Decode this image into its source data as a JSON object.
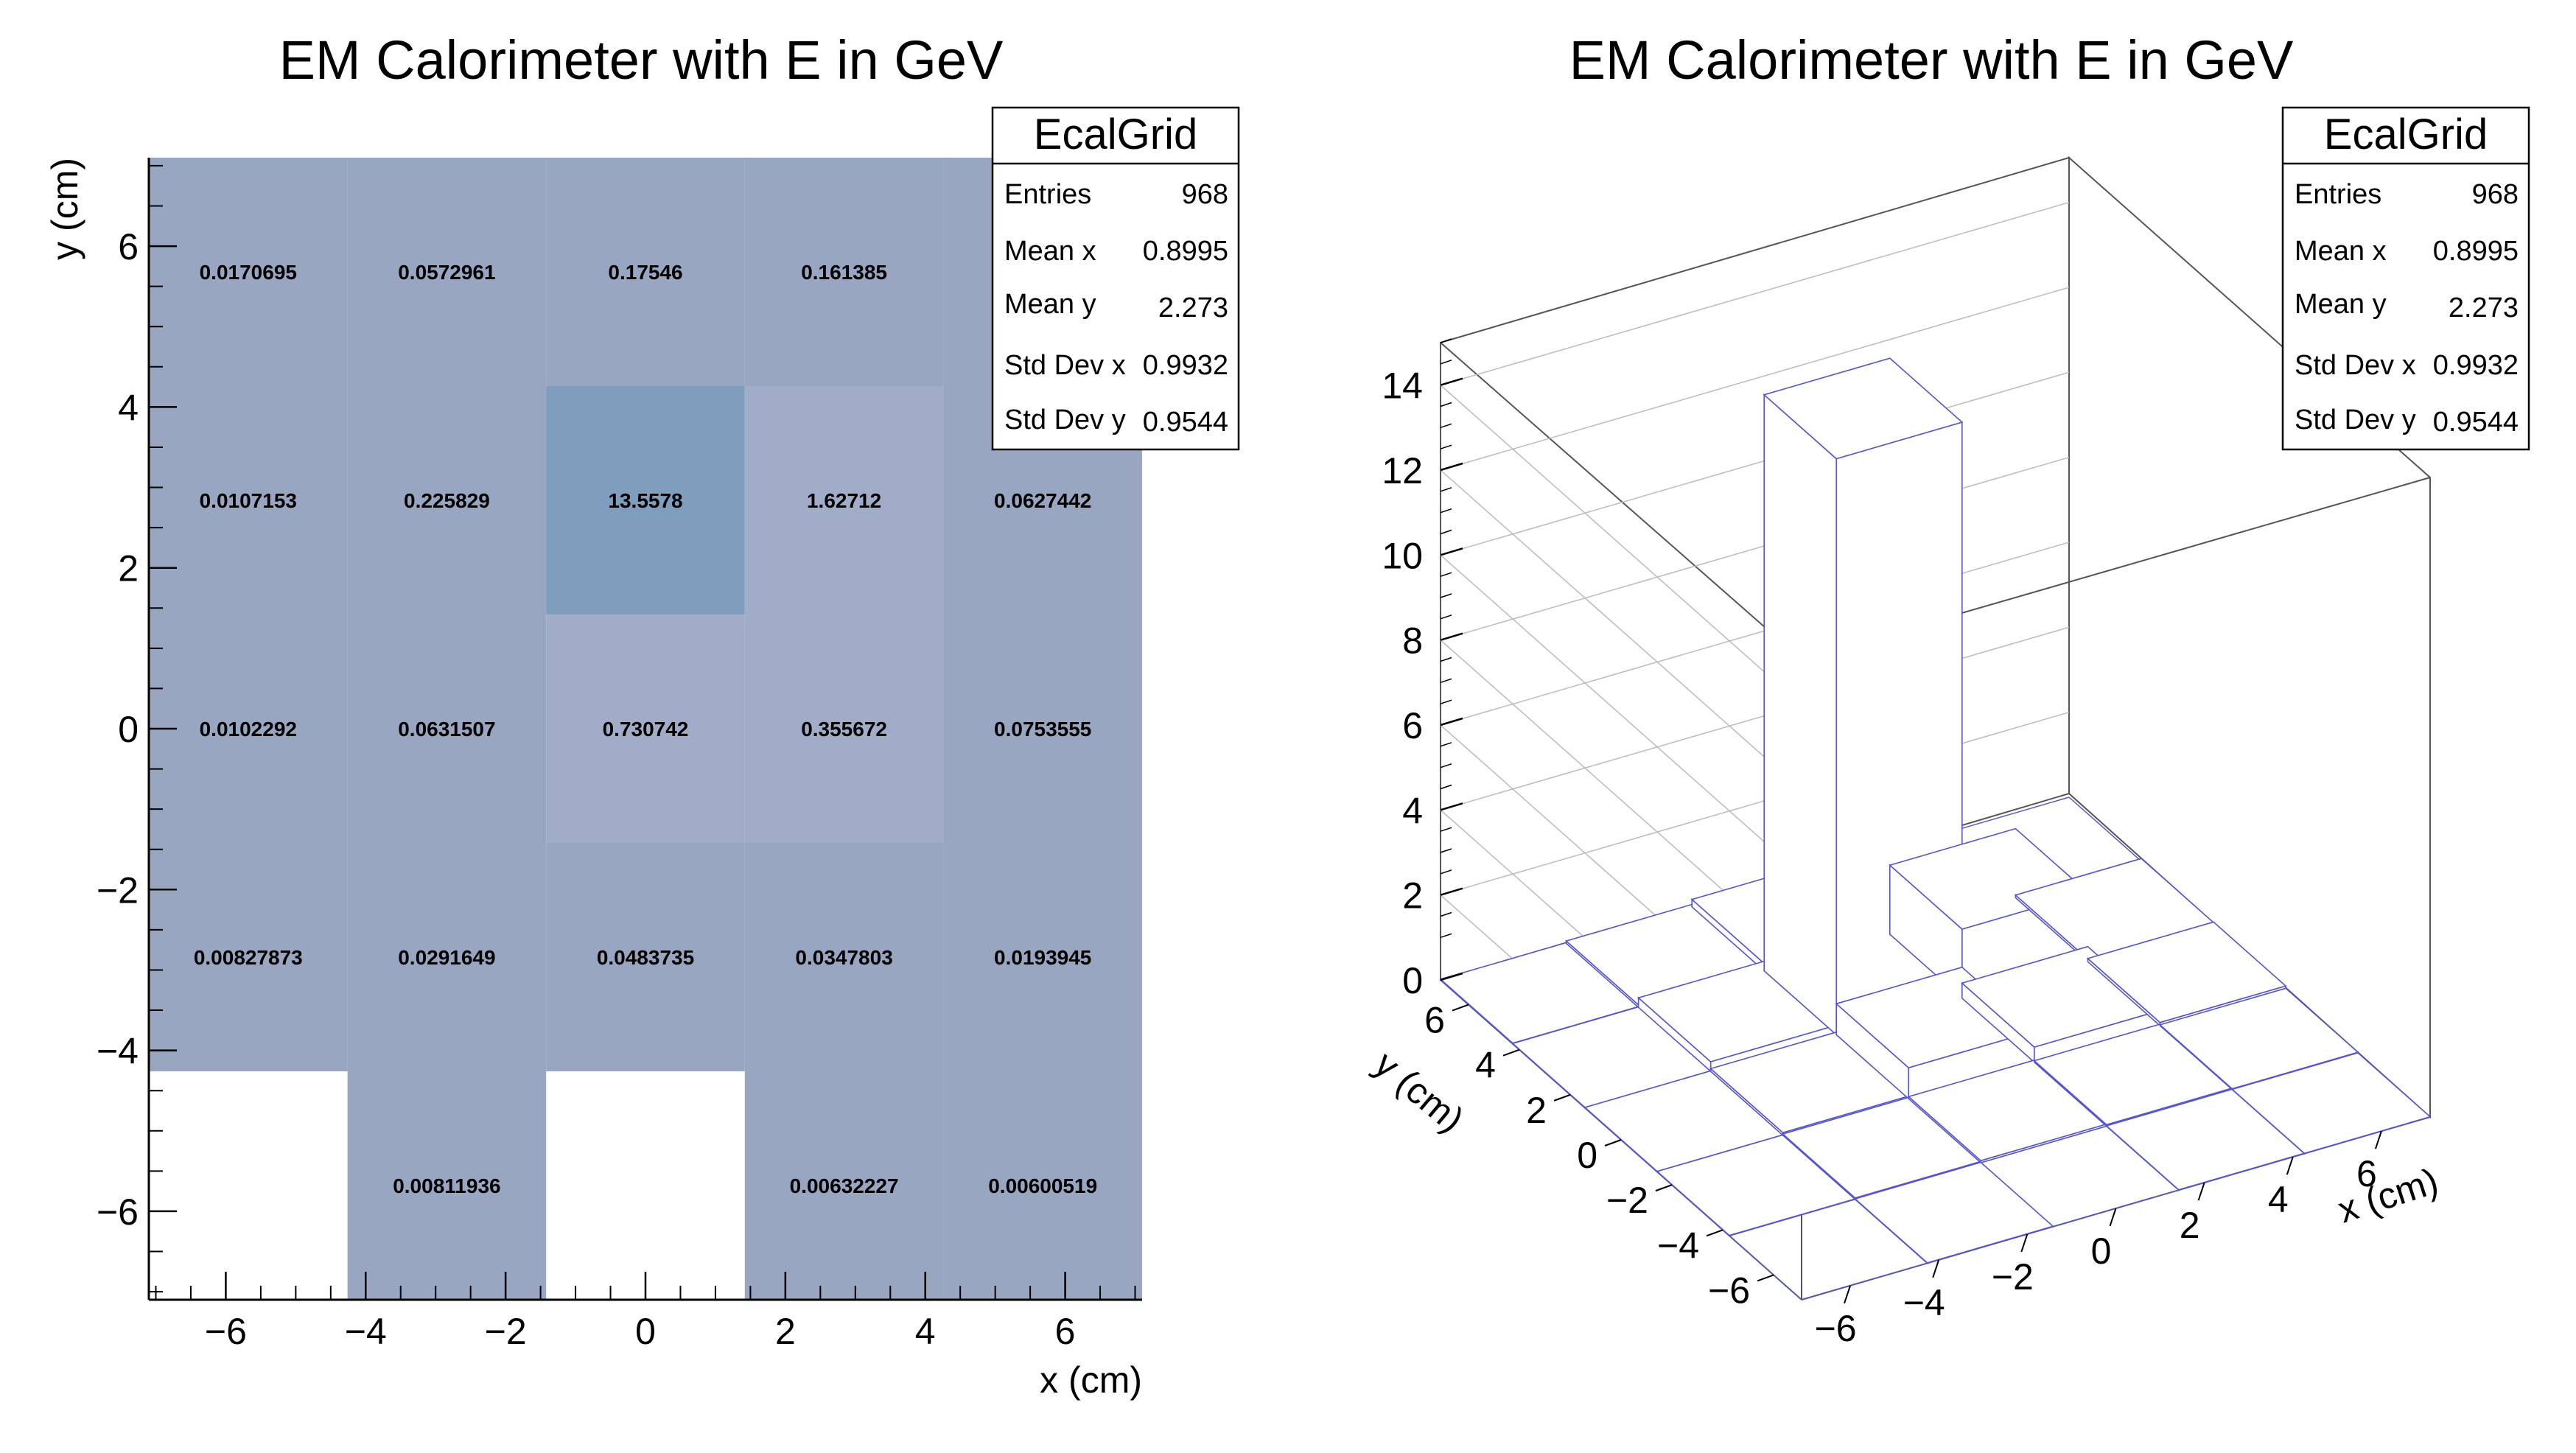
{
  "left_title": "EM Calorimeter with E in GeV",
  "right_title": "EM Calorimeter with E in GeV",
  "colors": {
    "low": "#98a6c2",
    "mid": "#a1adc8",
    "high": "#7f9ebe",
    "line3d": "#5555cc",
    "frame": "#000000"
  },
  "stats": {
    "title": "EcalGrid",
    "rows": [
      {
        "label": "Entries",
        "value": "968"
      },
      {
        "label": "Mean x",
        "value": "0.8995"
      },
      {
        "label": "Mean y",
        "value": "2.273"
      },
      {
        "label": "Std Dev x",
        "value": "0.9932"
      },
      {
        "label": "Std Dev y",
        "value": "0.9544"
      }
    ]
  },
  "chart_data": [
    {
      "type": "heatmap",
      "title": "EM Calorimeter with E in GeV",
      "xlabel": "x (cm)",
      "ylabel": "y (cm)",
      "xlim": [
        -7.1,
        7.1
      ],
      "ylim": [
        -7.1,
        7.1
      ],
      "x_edges": [
        -7.1,
        -4.26,
        -1.42,
        1.42,
        4.26,
        7.1
      ],
      "y_edges": [
        -7.1,
        -4.26,
        -1.42,
        1.42,
        4.26,
        7.1
      ],
      "xticks": [
        "−6",
        "−4",
        "−2",
        "0",
        "2",
        "4",
        "6"
      ],
      "yticks": [
        "−6",
        "−4",
        "−2",
        "0",
        "2",
        "4",
        "6"
      ],
      "cells": [
        [
          "",
          "0.00811936",
          "",
          "0.00632227",
          "0.00600519"
        ],
        [
          "0.00827873",
          "0.0291649",
          "0.0483735",
          "0.0347803",
          "0.0193945"
        ],
        [
          "0.0102292",
          "0.0631507",
          "0.730742",
          "0.355672",
          "0.0753555"
        ],
        [
          "0.0107153",
          "0.225829",
          "13.5578",
          "1.62712",
          "0.0627442"
        ],
        [
          "0.0170695",
          "0.0572961",
          "0.17546",
          "0.161385",
          ""
        ]
      ]
    },
    {
      "type": "bar",
      "subtype": "lego3d",
      "title": "EM Calorimeter with E in GeV",
      "xlabel": "x (cm)",
      "ylabel": "y (cm)",
      "zlim": [
        0,
        15
      ],
      "xticks": [
        "−6",
        "−4",
        "−2",
        "0",
        "2",
        "4",
        "6"
      ],
      "yticks": [
        "−6",
        "−4",
        "−2",
        "0",
        "2",
        "4",
        "6"
      ],
      "zticks": [
        "0",
        "2",
        "4",
        "6",
        "8",
        "10",
        "12",
        "14"
      ]
    }
  ]
}
